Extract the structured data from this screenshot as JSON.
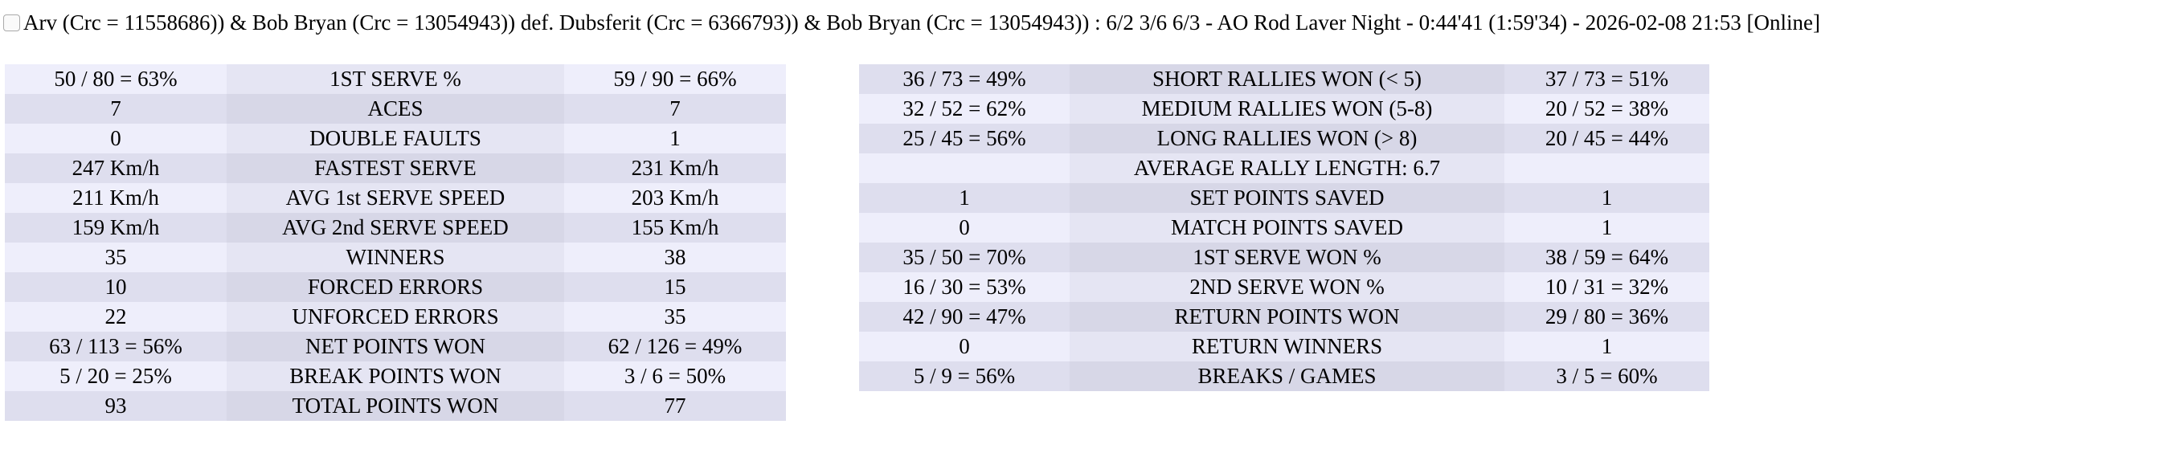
{
  "header": {
    "title": "Arv (Crc = 11558686)) & Bob Bryan (Crc = 13054943)) def. Dubsferit (Crc = 6366793)) & Bob Bryan (Crc = 13054943)) : 6/2 3/6 6/3 - AO Rod Laver Night - 0:44'41 (1:59'34) - 2026-02-08 21:53 [Online]"
  },
  "colors": {
    "row_light": "#eeeefb",
    "row_dark": "#dedeee"
  },
  "left_table": [
    [
      "50 / 80 = 63%",
      "1ST SERVE %",
      "59 / 90 = 66%"
    ],
    [
      "7",
      "ACES",
      "7"
    ],
    [
      "0",
      "DOUBLE FAULTS",
      "1"
    ],
    [
      "247 Km/h",
      "FASTEST SERVE",
      "231 Km/h"
    ],
    [
      "211 Km/h",
      "AVG 1st SERVE SPEED",
      "203 Km/h"
    ],
    [
      "159 Km/h",
      "AVG 2nd SERVE SPEED",
      "155 Km/h"
    ],
    [
      "35",
      "WINNERS",
      "38"
    ],
    [
      "10",
      "FORCED ERRORS",
      "15"
    ],
    [
      "22",
      "UNFORCED ERRORS",
      "35"
    ],
    [
      "63 / 113 = 56%",
      "NET POINTS WON",
      "62 / 126 = 49%"
    ],
    [
      "5 / 20 = 25%",
      "BREAK POINTS WON",
      "3 / 6 = 50%"
    ],
    [
      "93",
      "TOTAL POINTS WON",
      "77"
    ]
  ],
  "right_table": [
    [
      "36 / 73 = 49%",
      "SHORT RALLIES WON (< 5)",
      "37 / 73 = 51%"
    ],
    [
      "32 / 52 = 62%",
      "MEDIUM RALLIES WON (5-8)",
      "20 / 52 = 38%"
    ],
    [
      "25 / 45 = 56%",
      "LONG RALLIES WON (> 8)",
      "20 / 45 = 44%"
    ],
    [
      "",
      "AVERAGE RALLY LENGTH: 6.7",
      ""
    ],
    [
      "1",
      "SET POINTS SAVED",
      "1"
    ],
    [
      "0",
      "MATCH POINTS SAVED",
      "1"
    ],
    [
      "35 / 50 = 70%",
      "1ST SERVE WON %",
      "38 / 59 = 64%"
    ],
    [
      "16 / 30 = 53%",
      "2ND SERVE WON %",
      "10 / 31 = 32%"
    ],
    [
      "42 / 90 = 47%",
      "RETURN POINTS WON",
      "29 / 80 = 36%"
    ],
    [
      "0",
      "RETURN WINNERS",
      "1"
    ],
    [
      "5 / 9 = 56%",
      "BREAKS / GAMES",
      "3 / 5 = 60%"
    ]
  ]
}
